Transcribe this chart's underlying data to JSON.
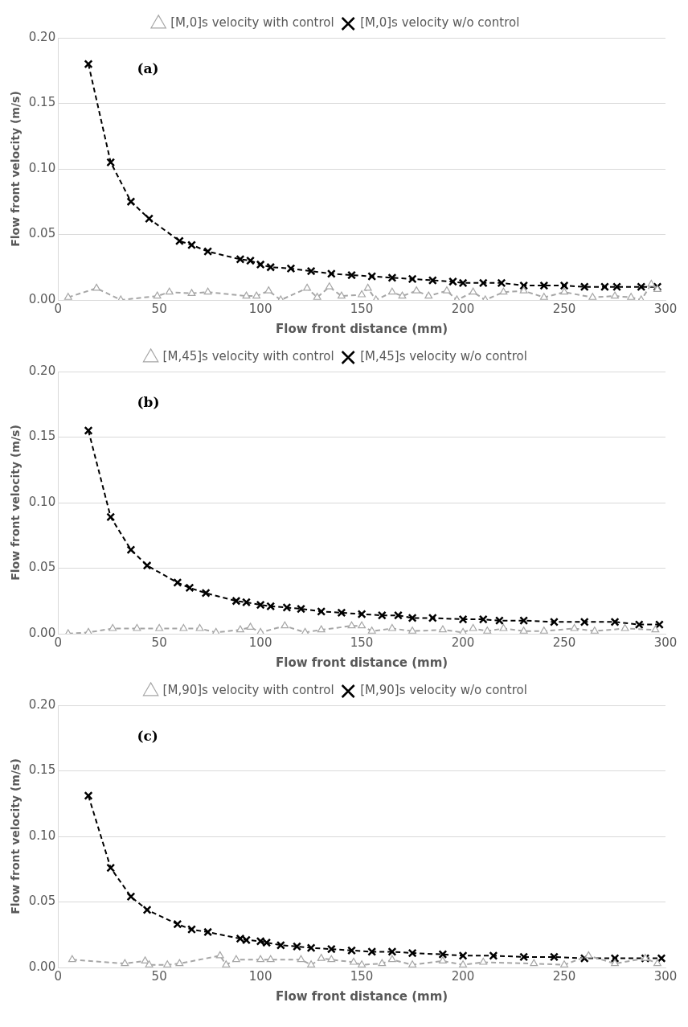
{
  "chart_data": [
    {
      "type": "line",
      "xlabel": "Flow front distance (mm)",
      "ylabel": "Flow front velocity (m/s)",
      "annotations": [
        "(a)"
      ],
      "xlim": [
        0,
        300
      ],
      "xticks": [
        0,
        50,
        100,
        150,
        200,
        250,
        300
      ],
      "ylim": [
        0,
        0.2
      ],
      "yticks": [
        {
          "value": 0,
          "label": "0.00"
        },
        {
          "value": 0.05,
          "label": "0.05"
        },
        {
          "value": 0.1,
          "label": "0.10"
        },
        {
          "value": 0.15,
          "label": "0.15"
        },
        {
          "value": 0.2,
          "label": "0.20"
        }
      ],
      "grid": "y",
      "legend": "top",
      "line_style": "dashed",
      "series": [
        {
          "name": "[M,0]s velocity w/o control",
          "color": "#000000",
          "marker": "cross",
          "x": [
            15,
            26,
            36,
            45,
            60,
            66,
            74,
            90,
            95,
            100,
            105,
            115,
            125,
            135,
            145,
            155,
            165,
            175,
            185,
            195,
            200,
            210,
            219,
            230,
            240,
            250,
            260,
            270,
            276,
            288,
            296
          ],
          "values": [
            0.18,
            0.105,
            0.075,
            0.062,
            0.045,
            0.042,
            0.037,
            0.031,
            0.03,
            0.027,
            0.025,
            0.024,
            0.022,
            0.02,
            0.019,
            0.018,
            0.017,
            0.016,
            0.015,
            0.014,
            0.013,
            0.013,
            0.013,
            0.011,
            0.011,
            0.011,
            0.01,
            0.01,
            0.01,
            0.01,
            0.01
          ]
        },
        {
          "name": "[M,0]s velocity with control",
          "color": "#a6a6a6",
          "marker": "triangle",
          "x": [
            5,
            19,
            31,
            49,
            55,
            66,
            74,
            93,
            98,
            104,
            110,
            123,
            128,
            134,
            140,
            150,
            153,
            157,
            165,
            170,
            177,
            183,
            192,
            197,
            205,
            211,
            220,
            230,
            240,
            250,
            264,
            275,
            283,
            288,
            293,
            296
          ],
          "values": [
            0.002,
            0.009,
            0.0,
            0.003,
            0.006,
            0.005,
            0.006,
            0.003,
            0.003,
            0.007,
            0.0,
            0.009,
            0.002,
            0.01,
            0.003,
            0.004,
            0.009,
            0.0,
            0.006,
            0.003,
            0.007,
            0.003,
            0.007,
            0.0,
            0.006,
            0.0,
            0.006,
            0.007,
            0.002,
            0.006,
            0.002,
            0.003,
            0.002,
            0.0,
            0.012,
            0.008
          ]
        }
      ]
    },
    {
      "type": "line",
      "xlabel": "Flow front distance (mm)",
      "ylabel": "Flow front velocity (m/s)",
      "annotations": [
        "(b)"
      ],
      "xlim": [
        0,
        300
      ],
      "xticks": [
        0,
        50,
        100,
        150,
        200,
        250,
        300
      ],
      "ylim": [
        0,
        0.2
      ],
      "yticks": [
        {
          "value": 0,
          "label": "0.00"
        },
        {
          "value": 0.05,
          "label": "0.05"
        },
        {
          "value": 0.1,
          "label": "0.10"
        },
        {
          "value": 0.15,
          "label": "0.15"
        },
        {
          "value": 0.2,
          "label": "0.20"
        }
      ],
      "grid": "y",
      "legend": "top",
      "line_style": "dashed",
      "series": [
        {
          "name": "[M,45]s velocity w/o control",
          "color": "#000000",
          "marker": "cross",
          "x": [
            15,
            26,
            36,
            44,
            59,
            65,
            73,
            88,
            93,
            100,
            105,
            113,
            120,
            130,
            140,
            150,
            160,
            168,
            175,
            185,
            200,
            210,
            218,
            230,
            245,
            260,
            275,
            287,
            297
          ],
          "values": [
            0.155,
            0.089,
            0.064,
            0.052,
            0.039,
            0.035,
            0.031,
            0.025,
            0.024,
            0.022,
            0.021,
            0.02,
            0.019,
            0.017,
            0.016,
            0.015,
            0.014,
            0.014,
            0.012,
            0.012,
            0.011,
            0.011,
            0.01,
            0.01,
            0.009,
            0.009,
            0.009,
            0.007,
            0.007
          ]
        },
        {
          "name": "[M,45]s velocity with control",
          "color": "#a6a6a6",
          "marker": "triangle",
          "x": [
            5,
            15,
            27,
            39,
            50,
            62,
            70,
            78,
            90,
            95,
            100,
            112,
            122,
            130,
            145,
            150,
            155,
            165,
            175,
            190,
            200,
            205,
            212,
            220,
            230,
            240,
            255,
            265,
            280,
            295
          ],
          "values": [
            0.0,
            0.001,
            0.004,
            0.004,
            0.004,
            0.004,
            0.004,
            0.001,
            0.003,
            0.005,
            0.001,
            0.006,
            0.001,
            0.003,
            0.006,
            0.006,
            0.002,
            0.004,
            0.002,
            0.003,
            0.001,
            0.004,
            0.002,
            0.004,
            0.002,
            0.002,
            0.004,
            0.002,
            0.004,
            0.003
          ]
        }
      ]
    },
    {
      "type": "line",
      "xlabel": "Flow front distance (mm)",
      "ylabel": "Flow front velocity (m/s)",
      "annotations": [
        "(c)"
      ],
      "xlim": [
        0,
        300
      ],
      "xticks": [
        0,
        50,
        100,
        150,
        200,
        250,
        300
      ],
      "ylim": [
        0,
        0.2
      ],
      "yticks": [
        {
          "value": 0,
          "label": "0.00"
        },
        {
          "value": 0.05,
          "label": "0.05"
        },
        {
          "value": 0.1,
          "label": "0.10"
        },
        {
          "value": 0.15,
          "label": "0.15"
        },
        {
          "value": 0.2,
          "label": "0.20"
        }
      ],
      "grid": "y",
      "legend": "top",
      "line_style": "dashed",
      "series": [
        {
          "name": "[M,90]s velocity w/o control",
          "color": "#000000",
          "marker": "cross",
          "x": [
            15,
            26,
            36,
            44,
            59,
            66,
            74,
            90,
            93,
            100,
            103,
            110,
            118,
            125,
            135,
            145,
            155,
            165,
            175,
            190,
            200,
            215,
            230,
            245,
            260,
            275,
            290,
            298
          ],
          "values": [
            0.131,
            0.076,
            0.054,
            0.044,
            0.033,
            0.029,
            0.027,
            0.022,
            0.021,
            0.02,
            0.019,
            0.017,
            0.016,
            0.015,
            0.014,
            0.013,
            0.012,
            0.012,
            0.011,
            0.01,
            0.009,
            0.009,
            0.008,
            0.008,
            0.007,
            0.007,
            0.007,
            0.007
          ]
        },
        {
          "name": "[M,90]s velocity with control",
          "color": "#a6a6a6",
          "marker": "triangle",
          "x": [
            7,
            33,
            43,
            45,
            54,
            60,
            80,
            83,
            88,
            100,
            105,
            120,
            125,
            130,
            135,
            146,
            150,
            160,
            165,
            175,
            190,
            200,
            210,
            235,
            250,
            262,
            275,
            290,
            296
          ],
          "values": [
            0.006,
            0.003,
            0.005,
            0.002,
            0.002,
            0.003,
            0.009,
            0.002,
            0.006,
            0.006,
            0.006,
            0.006,
            0.002,
            0.007,
            0.006,
            0.004,
            0.002,
            0.003,
            0.006,
            0.002,
            0.005,
            0.002,
            0.004,
            0.003,
            0.002,
            0.009,
            0.003,
            0.007,
            0.003
          ]
        }
      ]
    }
  ]
}
